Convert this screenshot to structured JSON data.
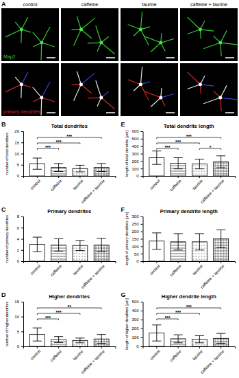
{
  "figure": {
    "panel_a": {
      "panel": "A",
      "columns": [
        "control",
        "caffeine",
        "taurine",
        "caffeine + taurine"
      ],
      "stain": "Map2",
      "overlay": "primary dendrites"
    }
  },
  "chart_data": [
    {
      "type": "bar",
      "panel": "B",
      "title": "Total dendrites",
      "y_label": "number of total dendrites",
      "categories": [
        "control",
        "caffeine",
        "taurine",
        "caffeine + taurine"
      ],
      "values": [
        5.5,
        3.8,
        3.3,
        3.8
      ],
      "errors": [
        2.5,
        1.8,
        1.5,
        1.8
      ],
      "color": "#ffffff",
      "ylim": [
        0,
        20
      ],
      "yticks": [
        0,
        5,
        10,
        15,
        20
      ],
      "significance": [
        {
          "from": 0,
          "to": 1,
          "label": "***"
        },
        {
          "from": 0,
          "to": 2,
          "label": "***"
        },
        {
          "from": 0,
          "to": 3,
          "label": "***"
        }
      ]
    },
    {
      "type": "bar",
      "panel": "C",
      "title": "Primary dendrites",
      "y_label": "number of primary dendrites",
      "categories": [
        "control",
        "caffeine",
        "taurine",
        "caffeine + taurine"
      ],
      "values": [
        3.0,
        2.9,
        2.8,
        2.9
      ],
      "errors": [
        1.3,
        1.1,
        0.9,
        1.2
      ],
      "color": "#ffffff",
      "ylim": [
        0,
        8
      ],
      "yticks": [
        0,
        2,
        4,
        6,
        8
      ],
      "significance": []
    },
    {
      "type": "bar",
      "panel": "D",
      "title": "Higher dendrites",
      "y_label": "number of higher dendrites",
      "categories": [
        "control",
        "caffeine",
        "taurine",
        "caffeine + taurine"
      ],
      "values": [
        4.0,
        2.3,
        2.0,
        2.5
      ],
      "errors": [
        2.2,
        1.0,
        0.8,
        1.5
      ],
      "color": "#ffffff",
      "ylim": [
        0,
        15
      ],
      "yticks": [
        0,
        5,
        10,
        15
      ],
      "significance": [
        {
          "from": 0,
          "to": 1,
          "label": "***"
        },
        {
          "from": 0,
          "to": 2,
          "label": "***"
        },
        {
          "from": 0,
          "to": 3,
          "label": "**"
        }
      ]
    },
    {
      "type": "bar",
      "panel": "E",
      "title": "Total dendrite length",
      "y_label": "length of total dendrite [µm]",
      "categories": [
        "control",
        "caffeine",
        "taurine",
        "caffeine + taurine"
      ],
      "values": [
        245,
        170,
        160,
        190
      ],
      "errors": [
        90,
        75,
        65,
        80
      ],
      "color": "#ffffff",
      "ylim": [
        0,
        600
      ],
      "yticks": [
        0,
        100,
        200,
        300,
        400,
        500,
        600
      ],
      "significance": [
        {
          "from": 0,
          "to": 1,
          "label": "***"
        },
        {
          "from": 0,
          "to": 2,
          "label": "***"
        },
        {
          "from": 0,
          "to": 3,
          "label": "***"
        },
        {
          "from": 2,
          "to": 3,
          "label": "*"
        }
      ]
    },
    {
      "type": "bar",
      "panel": "F",
      "title": "Primary dendrite length",
      "y_label": "length of primary dendrites [µm]",
      "categories": [
        "control",
        "caffeine",
        "taurine",
        "caffeine + taurine"
      ],
      "values": [
        135,
        130,
        130,
        150
      ],
      "errors": [
        55,
        55,
        55,
        60
      ],
      "color": "#ffffff",
      "ylim": [
        0,
        300
      ],
      "yticks": [
        0,
        50,
        100,
        150,
        200,
        250,
        300
      ],
      "significance": []
    },
    {
      "type": "bar",
      "panel": "G",
      "title": "Higher dendrite length",
      "y_label": "length of higher dendrites [µm]",
      "categories": [
        "control",
        "caffeine",
        "taurine",
        "caffeine + taurine"
      ],
      "values": [
        150,
        85,
        80,
        90
      ],
      "errors": [
        90,
        45,
        40,
        55
      ],
      "color": "#ffffff",
      "ylim": [
        0,
        500
      ],
      "yticks": [
        0,
        100,
        200,
        300,
        400,
        500
      ],
      "significance": [
        {
          "from": 0,
          "to": 1,
          "label": "***"
        },
        {
          "from": 0,
          "to": 2,
          "label": "***"
        },
        {
          "from": 0,
          "to": 3,
          "label": "***"
        }
      ]
    }
  ]
}
